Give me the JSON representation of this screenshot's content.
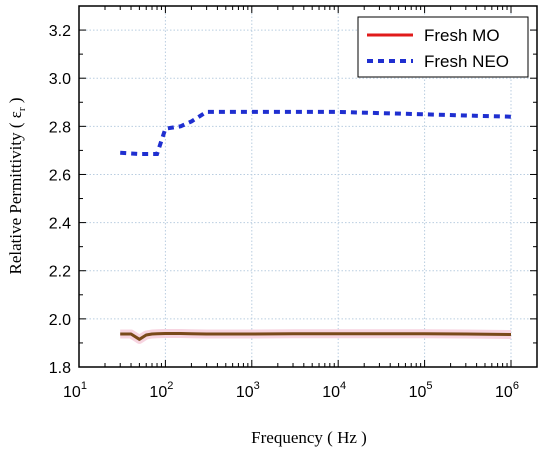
{
  "chart_data": {
    "type": "line",
    "xlabel": "Frequency ( Hz )",
    "ylabel": "Relative Permittivity ( ε",
    "ylabel_sub": "r",
    "ylabel_close": " )",
    "x_scale": "log",
    "x_base_label": "10",
    "x_ticks": [
      {
        "value": 10,
        "exp": "1"
      },
      {
        "value": 100,
        "exp": "2"
      },
      {
        "value": 1000,
        "exp": "3"
      },
      {
        "value": 10000,
        "exp": "4"
      },
      {
        "value": 100000,
        "exp": "5"
      },
      {
        "value": 1000000,
        "exp": "6"
      }
    ],
    "xlim": [
      10,
      2000000
    ],
    "ylim": [
      1.8,
      3.3
    ],
    "y_ticks": [
      {
        "value": 1.8,
        "label": "1.8"
      },
      {
        "value": 2.0,
        "label": "2.0"
      },
      {
        "value": 2.2,
        "label": "2.2"
      },
      {
        "value": 2.4,
        "label": "2.4"
      },
      {
        "value": 2.6,
        "label": "2.6"
      },
      {
        "value": 2.8,
        "label": "2.8"
      },
      {
        "value": 3.0,
        "label": "3.0"
      },
      {
        "value": 3.2,
        "label": "3.2"
      }
    ],
    "grid": true,
    "legend_position": "top-right",
    "series": [
      {
        "name": "Fresh MO",
        "color": "#e01b1b",
        "band_color": "#f7d4e0",
        "style": "solid",
        "x": [
          30,
          40,
          50,
          60,
          70,
          80,
          100,
          150,
          200,
          300,
          500,
          1000,
          3000,
          10000,
          30000,
          100000,
          300000,
          1000000
        ],
        "y": [
          1.937,
          1.937,
          1.915,
          1.933,
          1.937,
          1.938,
          1.939,
          1.939,
          1.938,
          1.937,
          1.937,
          1.937,
          1.938,
          1.938,
          1.938,
          1.938,
          1.937,
          1.935
        ]
      },
      {
        "name": "Fresh NEO",
        "color": "#1f2fd0",
        "style": "dotted",
        "x": [
          30,
          50,
          80,
          100,
          150,
          200,
          300,
          500,
          1000,
          3000,
          10000,
          30000,
          100000,
          300000,
          1000000
        ],
        "y": [
          2.69,
          2.685,
          2.685,
          2.79,
          2.8,
          2.82,
          2.86,
          2.86,
          2.86,
          2.86,
          2.86,
          2.855,
          2.85,
          2.845,
          2.84
        ]
      }
    ]
  }
}
